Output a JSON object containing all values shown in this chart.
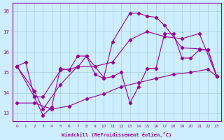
{
  "xlabel": "Windchill (Refroidissement éolien,°C)",
  "bg_color": "#cceeff",
  "line_color": "#990099",
  "grid_color": "#aaccdd",
  "xlim": [
    -0.5,
    23.5
  ],
  "ylim": [
    12.6,
    18.4
  ],
  "yticks": [
    13,
    14,
    15,
    16,
    17,
    18
  ],
  "xticks": [
    0,
    1,
    2,
    3,
    4,
    5,
    6,
    7,
    8,
    9,
    10,
    11,
    12,
    13,
    14,
    15,
    16,
    17,
    18,
    19,
    20,
    21,
    22,
    23
  ],
  "series": [
    {
      "x": [
        0,
        1,
        2,
        3,
        4,
        5,
        6,
        7,
        8,
        9,
        10,
        11,
        12,
        13,
        14,
        15,
        16,
        17,
        18,
        19,
        20,
        21,
        22,
        23
      ],
      "y": [
        15.3,
        15.5,
        13.8,
        12.9,
        13.3,
        15.2,
        15.1,
        15.8,
        15.8,
        14.9,
        14.7,
        14.8,
        15.0,
        13.5,
        14.3,
        15.2,
        15.2,
        16.9,
        16.9,
        15.7,
        15.7,
        16.1,
        16.1,
        14.8
      ]
    },
    {
      "x": [
        0,
        2,
        3,
        5,
        7,
        8,
        10,
        11,
        13,
        14,
        15,
        16,
        17,
        19,
        21,
        22,
        23
      ],
      "y": [
        15.3,
        13.8,
        13.8,
        15.1,
        15.25,
        15.8,
        14.75,
        16.5,
        17.9,
        17.9,
        17.75,
        17.7,
        17.3,
        16.2,
        16.15,
        16.1,
        14.8
      ]
    },
    {
      "x": [
        0,
        2,
        3,
        5,
        7,
        9,
        11,
        13,
        15,
        17,
        19,
        21,
        23
      ],
      "y": [
        15.3,
        14.1,
        13.2,
        14.4,
        15.3,
        15.3,
        15.5,
        16.6,
        17.0,
        16.75,
        16.65,
        16.9,
        14.8
      ]
    },
    {
      "x": [
        0,
        2,
        4,
        6,
        8,
        10,
        12,
        14,
        16,
        18,
        20,
        22,
        23
      ],
      "y": [
        13.5,
        13.5,
        13.2,
        13.35,
        13.7,
        13.95,
        14.3,
        14.5,
        14.7,
        14.9,
        15.0,
        15.15,
        14.8
      ]
    }
  ]
}
